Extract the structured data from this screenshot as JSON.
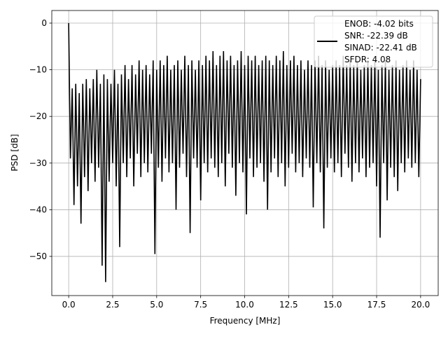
{
  "chart_data": {
    "type": "line",
    "title": "",
    "xlabel": "Frequency [MHz]",
    "ylabel": "PSD [dB]",
    "xlim": [
      -0.96,
      21.0
    ],
    "ylim": [
      -58.4,
      2.7
    ],
    "grid": true,
    "xticks": [
      0,
      2.5,
      5,
      7.5,
      10,
      12.5,
      15,
      17.5,
      20
    ],
    "xtick_labels": [
      "0.0",
      "2.5",
      "5.0",
      "7.5",
      "10.0",
      "12.5",
      "15.0",
      "17.5",
      "20.0"
    ],
    "yticks": [
      0,
      -10,
      -20,
      -30,
      -40,
      -50
    ],
    "ytick_labels": [
      "0",
      "−10",
      "−20",
      "−30",
      "−40",
      "−50"
    ],
    "legend_placement": "upper-right",
    "legend": [
      "ENOB: -4.02 bits",
      "SNR: -22.39 dB",
      "SINAD: -22.41 dB",
      "SFDR: 4.08"
    ],
    "series": [
      {
        "name": "PSD",
        "color": "#000000",
        "x_start": 0,
        "x_step": 0.1,
        "values": [
          0,
          -29,
          -14,
          -39,
          -13,
          -35,
          -15,
          -43,
          -13,
          -33,
          -12,
          -36,
          -14,
          -30,
          -12,
          -34,
          -10,
          -31,
          -13,
          -52,
          -11,
          -55.5,
          -12,
          -34,
          -13,
          -30,
          -10,
          -35,
          -13,
          -48,
          -11,
          -30,
          -9,
          -33,
          -12,
          -29,
          -9,
          -35,
          -11,
          -28,
          -8,
          -33,
          -10,
          -30,
          -9,
          -32,
          -11,
          -28,
          -8,
          -49.5,
          -10,
          -31,
          -8,
          -34,
          -9,
          -29,
          -7,
          -32,
          -10,
          -30,
          -9,
          -40,
          -8,
          -31,
          -10,
          -28,
          -7,
          -33,
          -9,
          -45,
          -8,
          -29,
          -10,
          -31,
          -8,
          -38,
          -9,
          -30,
          -7,
          -32,
          -8,
          -29,
          -6,
          -31,
          -9,
          -33,
          -7,
          -30,
          -6,
          -35,
          -8,
          -28,
          -7,
          -31,
          -9,
          -37,
          -8,
          -30,
          -6,
          -32,
          -9,
          -41,
          -7,
          -29,
          -8,
          -33,
          -7,
          -31,
          -9,
          -30,
          -8,
          -34,
          -7,
          -40,
          -8,
          -32,
          -9,
          -29,
          -7,
          -33,
          -8,
          -30,
          -6,
          -35,
          -9,
          -31,
          -8,
          -28,
          -7,
          -32,
          -9,
          -30,
          -8,
          -33,
          -10,
          -29,
          -8,
          -31,
          -9,
          -39.5,
          -8,
          -30,
          -7,
          -32,
          -9,
          -44,
          -8,
          -31,
          -10,
          -29,
          -9,
          -32,
          -8,
          -30,
          -9,
          -33,
          -7,
          -28,
          -9,
          -31,
          -8,
          -34,
          -9,
          -30,
          -8,
          -32,
          -10,
          -29,
          -9,
          -33,
          -8,
          -31,
          -9,
          -30,
          -8,
          -35,
          -10,
          -46,
          -9,
          -30,
          -8,
          -38,
          -10,
          -31,
          -9,
          -33,
          -8,
          -36,
          -10,
          -30,
          -9,
          -32,
          -8,
          -29,
          -10,
          -31,
          -8,
          -30,
          -10,
          -33,
          -12
        ]
      }
    ]
  }
}
